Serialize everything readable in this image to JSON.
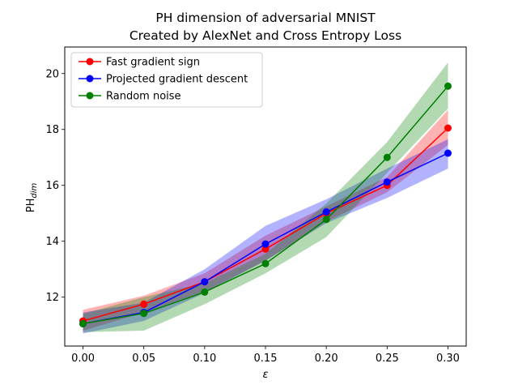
{
  "chart_data": {
    "type": "line",
    "title": "PH dimension of adversarial MNIST",
    "subtitle": "Created by AlexNet and Cross Entropy Loss",
    "xlabel_main": "ε",
    "ylabel_main": "PH",
    "ylabel_sub": "dim",
    "x": [
      0.0,
      0.05,
      0.1,
      0.15,
      0.2,
      0.25,
      0.3
    ],
    "xtick_labels": [
      "0.00",
      "0.05",
      "0.10",
      "0.15",
      "0.20",
      "0.25",
      "0.30"
    ],
    "ytick_values": [
      12,
      14,
      16,
      18,
      20
    ],
    "ytick_labels": [
      "12",
      "14",
      "16",
      "18",
      "20"
    ],
    "xlim": [
      -0.015,
      0.315
    ],
    "ylim": [
      10.25,
      20.95
    ],
    "grid": false,
    "legend_position": "upper-left",
    "series": [
      {
        "name": "Fast gradient sign",
        "color": "#ff0000",
        "values": [
          11.15,
          11.75,
          12.55,
          13.72,
          15.0,
          16.0,
          18.05
        ],
        "lower": [
          10.8,
          11.45,
          12.2,
          13.3,
          14.7,
          15.75,
          17.45
        ],
        "upper": [
          11.55,
          12.05,
          12.85,
          14.2,
          15.25,
          16.3,
          18.7
        ]
      },
      {
        "name": "Projected gradient descent",
        "color": "#0000ff",
        "values": [
          11.05,
          11.45,
          12.55,
          13.9,
          15.05,
          16.12,
          17.15
        ],
        "lower": [
          10.7,
          11.15,
          12.15,
          13.3,
          14.65,
          15.55,
          16.6
        ],
        "upper": [
          11.45,
          11.8,
          13.0,
          14.55,
          15.5,
          16.6,
          17.65
        ]
      },
      {
        "name": "Random noise",
        "color": "#008000",
        "values": [
          11.05,
          11.42,
          12.18,
          13.2,
          14.78,
          17.0,
          19.55
        ],
        "lower": [
          10.75,
          10.8,
          11.75,
          12.85,
          14.15,
          16.45,
          18.75
        ],
        "upper": [
          11.4,
          12.0,
          12.5,
          13.55,
          15.35,
          17.55,
          20.4
        ]
      }
    ]
  }
}
